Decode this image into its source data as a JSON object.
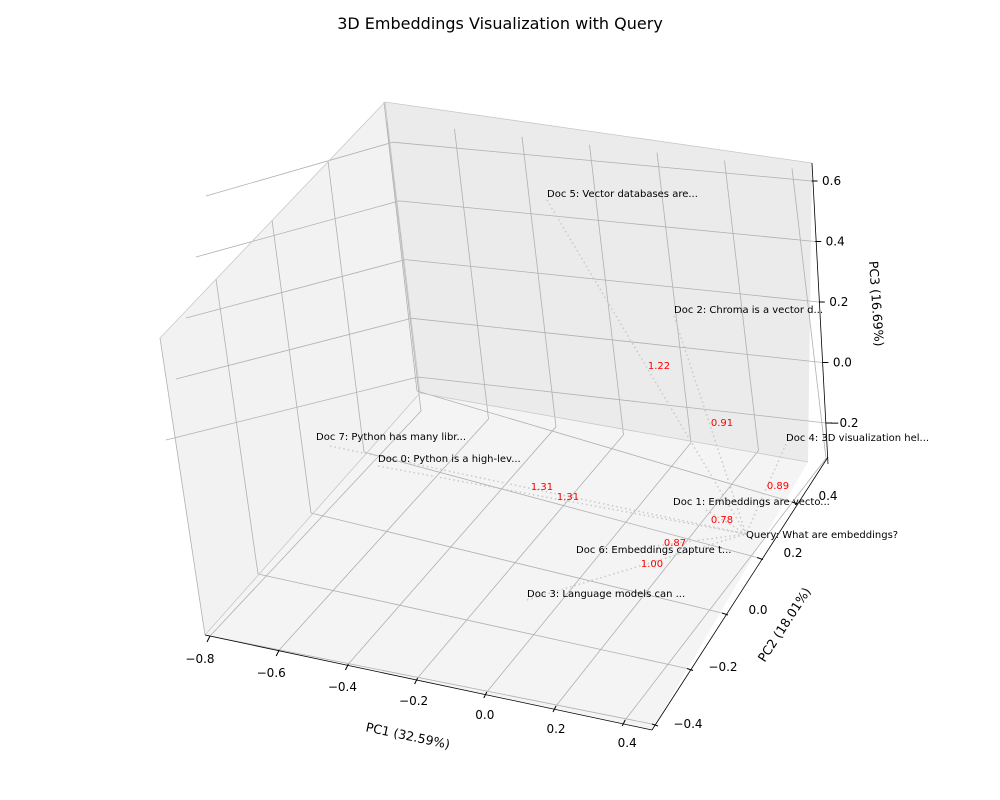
{
  "chart_data": {
    "type": "scatter",
    "title": "3D Embeddings Visualization with Query",
    "xlabel": "PC1 (32.59%)",
    "ylabel": "PC2 (18.01%)",
    "zlabel": "PC3 (16.69%)",
    "x_ticks": [
      "−0.8",
      "−0.6",
      "−0.4",
      "−0.2",
      "0.0",
      "0.2",
      "0.4"
    ],
    "y_ticks": [
      "−0.4",
      "−0.2",
      "0.0",
      "0.2",
      "0.4"
    ],
    "z_ticks": [
      "−0.2",
      "0.0",
      "0.2",
      "0.4",
      "0.6"
    ],
    "xlim": [
      -0.8,
      0.4
    ],
    "ylim": [
      -0.5,
      0.5
    ],
    "zlim": [
      -0.3,
      0.65
    ],
    "grid": true,
    "points": [
      {
        "label": "Doc 0: Python is a high-lev...",
        "distance": "1.31"
      },
      {
        "label": "Doc 1: Embeddings are vecto...",
        "distance": "0.78"
      },
      {
        "label": "Doc 2: Chroma is a vector d...",
        "distance": "0.91"
      },
      {
        "label": "Doc 3: Language models can ...",
        "distance": "1.00"
      },
      {
        "label": "Doc 4: 3D visualization hel...",
        "distance": "0.89"
      },
      {
        "label": "Doc 5: Vector databases are...",
        "distance": "1.22"
      },
      {
        "label": "Doc 6: Embeddings capture t...",
        "distance": "0.87"
      },
      {
        "label": "Doc 7: Python has many libr...",
        "distance": "1.31"
      }
    ],
    "query": {
      "label": "Query: What are embeddings?"
    }
  }
}
